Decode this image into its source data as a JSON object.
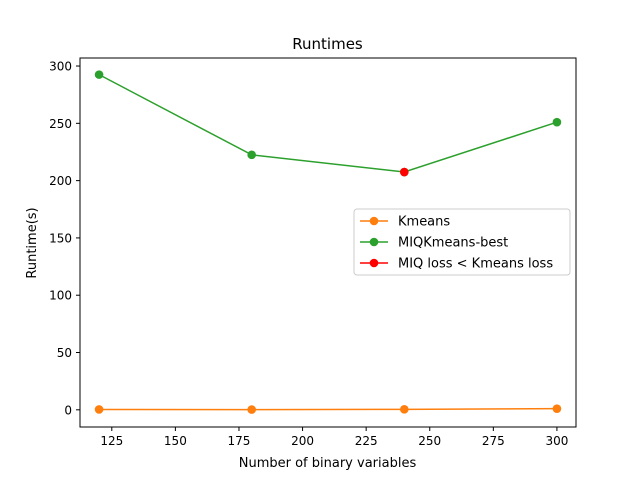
{
  "chart_data": {
    "type": "line",
    "title": "Runtimes",
    "xlabel": "Number of binary variables",
    "ylabel": "Runtime(s)",
    "xlim": [
      112.5,
      307.5
    ],
    "ylim": [
      -15,
      307
    ],
    "xticks": [
      125,
      150,
      175,
      200,
      225,
      250,
      275,
      300
    ],
    "yticks": [
      0,
      50,
      100,
      150,
      200,
      250,
      300
    ],
    "grid": false,
    "legend_position": "center-right",
    "series": [
      {
        "name": "Kmeans",
        "color": "#ff7f0e",
        "marker": "circle",
        "x": [
          120,
          180,
          240,
          300
        ],
        "y": [
          0.3,
          0.2,
          0.4,
          1.0
        ]
      },
      {
        "name": "MIQKmeans-best",
        "color": "#2ca02c",
        "marker": "circle",
        "x": [
          120,
          180,
          240,
          300
        ],
        "y": [
          292.5,
          222.5,
          207.5,
          251.0
        ]
      },
      {
        "name": "MIQ loss < Kmeans loss",
        "color": "#ff0000",
        "marker": "circle",
        "line": false,
        "x": [
          240
        ],
        "y": [
          207.5
        ]
      }
    ]
  }
}
